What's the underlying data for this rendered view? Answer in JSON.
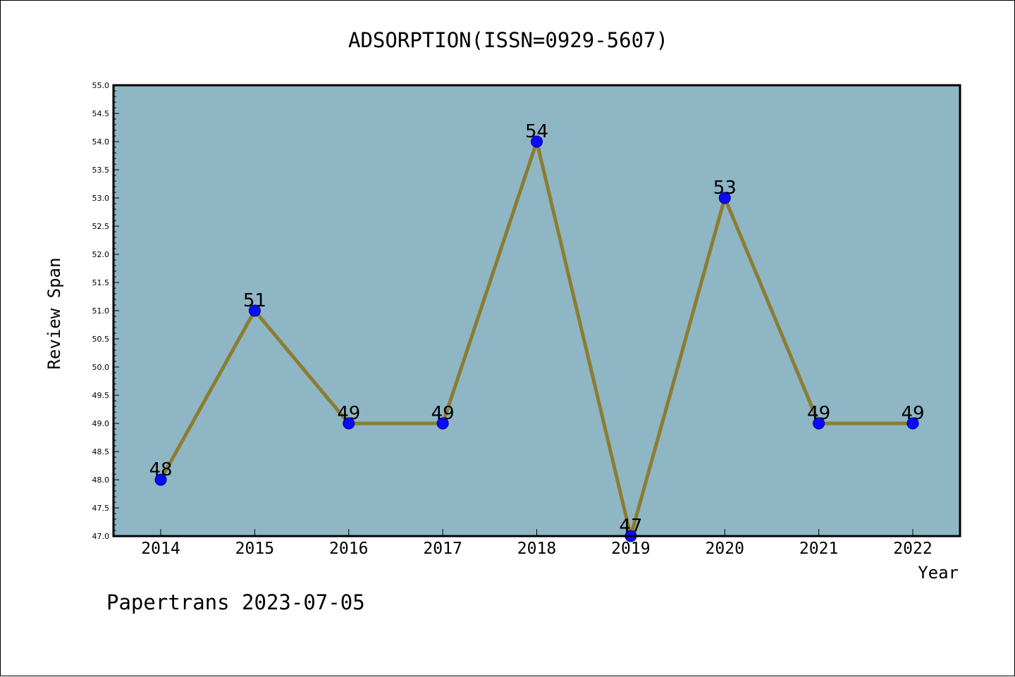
{
  "chart_data": {
    "type": "line",
    "title": "ADSORPTION(ISSN=0929-5607)",
    "xlabel": "Year",
    "ylabel": "Review Span",
    "categories": [
      "2014",
      "2015",
      "2016",
      "2017",
      "2018",
      "2019",
      "2020",
      "2021",
      "2022"
    ],
    "series": [
      {
        "values": [
          48,
          51,
          49,
          49,
          54,
          47,
          53,
          49,
          49
        ]
      }
    ],
    "data_labels": [
      "48",
      "51",
      "49",
      "49",
      "54",
      "47",
      "53",
      "49",
      "49"
    ],
    "ylim": [
      47.0,
      55.0
    ],
    "yticks": [
      "47.0",
      "47.5",
      "48.0",
      "48.5",
      "49.0",
      "49.5",
      "50.0",
      "50.5",
      "51.0",
      "51.5",
      "52.0",
      "52.5",
      "53.0",
      "53.5",
      "54.0",
      "54.5",
      "55.0"
    ],
    "grid": false,
    "colors": {
      "plot_background": "#8fb6c4",
      "line": "#8b7d32",
      "marker": "#0a0aff",
      "marker_edge": "#00008b"
    }
  },
  "footer": {
    "watermark": "Papertrans 2023-07-05"
  }
}
